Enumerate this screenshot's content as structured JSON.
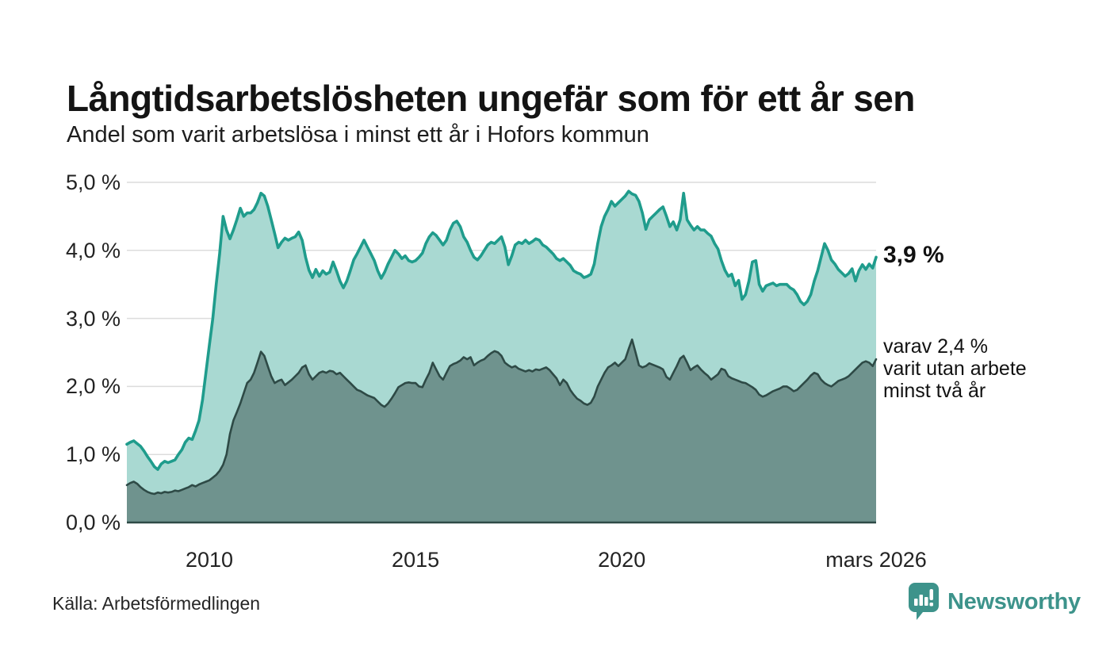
{
  "header": {
    "title": "Långtidsarbetslösheten ungefär som för ett år sen",
    "subtitle": "Andel som varit arbetslösa i minst ett år i Hofors kommun"
  },
  "annotations": {
    "latest_total": "3,9 %",
    "two_year_lines": [
      "varav 2,4 %",
      "varit utan arbete",
      "minst två år"
    ]
  },
  "footer": {
    "source": "Källa: Arbetsförmedlingen",
    "brand": "Newsworthy"
  },
  "colors": {
    "line_total": "#1f9c8c",
    "fill_total": "#a9d9d2",
    "line_two_year": "#2e4a46",
    "fill_two_year": "#6f938e",
    "gridline": "#dcdcdc",
    "brand": "#3d938b",
    "text": "#161616"
  },
  "chart_data": {
    "type": "area",
    "title": "Långtidsarbetslösheten ungefär som för ett år sen",
    "subtitle": "Andel som varit arbetslösa i minst ett år i Hofors kommun",
    "x_unit": "month",
    "x_start": "2008-01",
    "x_end": "2026-03",
    "ylim": [
      0,
      5
    ],
    "grid": true,
    "y_ticks": [
      {
        "label": "0,0 %",
        "v": 0
      },
      {
        "label": "1,0 %",
        "v": 1
      },
      {
        "label": "2,0 %",
        "v": 2
      },
      {
        "label": "3,0 %",
        "v": 3
      },
      {
        "label": "4,0 %",
        "v": 4
      },
      {
        "label": "5,0 %",
        "v": 5
      }
    ],
    "x_ticks": [
      {
        "label": "2010",
        "t": 2010
      },
      {
        "label": "2015",
        "t": 2015
      },
      {
        "label": "2020",
        "t": 2020
      },
      {
        "label": "mars 2026",
        "t": 2026.167
      }
    ],
    "series": [
      {
        "name": "Arbetslösa minst ett år",
        "latest_label": "3,9 %",
        "values": [
          1.15,
          1.18,
          1.2,
          1.16,
          1.12,
          1.05,
          0.97,
          0.9,
          0.82,
          0.78,
          0.86,
          0.9,
          0.88,
          0.9,
          0.92,
          1.0,
          1.07,
          1.18,
          1.24,
          1.22,
          1.35,
          1.5,
          1.8,
          2.2,
          2.6,
          3.0,
          3.5,
          3.95,
          4.5,
          4.3,
          4.17,
          4.3,
          4.45,
          4.62,
          4.5,
          4.55,
          4.55,
          4.6,
          4.7,
          4.84,
          4.8,
          4.65,
          4.45,
          4.25,
          4.04,
          4.12,
          4.18,
          4.15,
          4.18,
          4.2,
          4.27,
          4.15,
          3.9,
          3.71,
          3.6,
          3.72,
          3.62,
          3.7,
          3.65,
          3.68,
          3.83,
          3.7,
          3.55,
          3.45,
          3.55,
          3.7,
          3.86,
          3.95,
          4.05,
          4.15,
          4.05,
          3.95,
          3.85,
          3.7,
          3.59,
          3.68,
          3.8,
          3.9,
          4.0,
          3.95,
          3.88,
          3.92,
          3.85,
          3.83,
          3.85,
          3.9,
          3.96,
          4.1,
          4.2,
          4.26,
          4.22,
          4.15,
          4.08,
          4.15,
          4.3,
          4.4,
          4.43,
          4.35,
          4.2,
          4.12,
          4.0,
          3.9,
          3.86,
          3.92,
          4.0,
          4.08,
          4.12,
          4.1,
          4.15,
          4.2,
          4.05,
          3.79,
          3.92,
          4.08,
          4.12,
          4.1,
          4.15,
          4.1,
          4.13,
          4.17,
          4.15,
          4.08,
          4.05,
          4.0,
          3.95,
          3.88,
          3.85,
          3.88,
          3.83,
          3.78,
          3.7,
          3.67,
          3.65,
          3.6,
          3.62,
          3.65,
          3.8,
          4.1,
          4.35,
          4.5,
          4.6,
          4.72,
          4.65,
          4.7,
          4.75,
          4.8,
          4.87,
          4.83,
          4.81,
          4.72,
          4.55,
          4.31,
          4.45,
          4.5,
          4.55,
          4.6,
          4.64,
          4.5,
          4.35,
          4.42,
          4.3,
          4.45,
          4.84,
          4.45,
          4.37,
          4.3,
          4.35,
          4.3,
          4.3,
          4.25,
          4.21,
          4.1,
          4.02,
          3.85,
          3.71,
          3.62,
          3.65,
          3.48,
          3.56,
          3.28,
          3.35,
          3.55,
          3.83,
          3.85,
          3.5,
          3.4,
          3.48,
          3.5,
          3.52,
          3.48,
          3.5,
          3.5,
          3.5,
          3.45,
          3.42,
          3.35,
          3.25,
          3.2,
          3.25,
          3.35,
          3.55,
          3.7,
          3.9,
          4.1,
          4.0,
          3.86,
          3.8,
          3.72,
          3.67,
          3.62,
          3.66,
          3.73,
          3.55,
          3.7,
          3.79,
          3.72,
          3.8,
          3.74,
          3.9
        ]
      },
      {
        "name": "Arbetslösa minst två år",
        "latest_label": "2,4 %",
        "values": [
          0.55,
          0.58,
          0.6,
          0.57,
          0.52,
          0.48,
          0.45,
          0.43,
          0.42,
          0.44,
          0.43,
          0.45,
          0.44,
          0.45,
          0.47,
          0.46,
          0.48,
          0.5,
          0.52,
          0.55,
          0.53,
          0.56,
          0.58,
          0.6,
          0.62,
          0.66,
          0.7,
          0.76,
          0.85,
          1.0,
          1.3,
          1.5,
          1.62,
          1.75,
          1.9,
          2.05,
          2.1,
          2.2,
          2.35,
          2.51,
          2.45,
          2.3,
          2.15,
          2.05,
          2.08,
          2.1,
          2.02,
          2.06,
          2.1,
          2.15,
          2.2,
          2.28,
          2.31,
          2.18,
          2.1,
          2.15,
          2.2,
          2.22,
          2.2,
          2.23,
          2.22,
          2.18,
          2.2,
          2.15,
          2.1,
          2.05,
          2.0,
          1.95,
          1.93,
          1.9,
          1.87,
          1.85,
          1.83,
          1.78,
          1.73,
          1.7,
          1.75,
          1.82,
          1.9,
          1.99,
          2.02,
          2.05,
          2.06,
          2.05,
          2.05,
          2.0,
          1.99,
          2.1,
          2.2,
          2.35,
          2.25,
          2.15,
          2.1,
          2.2,
          2.3,
          2.33,
          2.35,
          2.38,
          2.43,
          2.4,
          2.43,
          2.31,
          2.35,
          2.38,
          2.4,
          2.45,
          2.49,
          2.52,
          2.5,
          2.45,
          2.35,
          2.31,
          2.28,
          2.3,
          2.26,
          2.24,
          2.22,
          2.24,
          2.22,
          2.25,
          2.24,
          2.26,
          2.28,
          2.24,
          2.18,
          2.12,
          2.02,
          2.1,
          2.05,
          1.95,
          1.88,
          1.82,
          1.79,
          1.75,
          1.73,
          1.76,
          1.85,
          2.0,
          2.1,
          2.2,
          2.28,
          2.31,
          2.35,
          2.3,
          2.35,
          2.4,
          2.55,
          2.69,
          2.5,
          2.31,
          2.28,
          2.3,
          2.34,
          2.32,
          2.3,
          2.28,
          2.25,
          2.14,
          2.1,
          2.2,
          2.3,
          2.41,
          2.45,
          2.35,
          2.24,
          2.28,
          2.31,
          2.25,
          2.2,
          2.16,
          2.1,
          2.14,
          2.18,
          2.26,
          2.24,
          2.15,
          2.12,
          2.1,
          2.08,
          2.06,
          2.05,
          2.02,
          1.99,
          1.95,
          1.88,
          1.85,
          1.87,
          1.9,
          1.93,
          1.95,
          1.97,
          2.0,
          2.0,
          1.97,
          1.93,
          1.95,
          2.0,
          2.05,
          2.1,
          2.16,
          2.2,
          2.18,
          2.1,
          2.05,
          2.02,
          2.0,
          2.04,
          2.08,
          2.1,
          2.12,
          2.15,
          2.2,
          2.25,
          2.3,
          2.35,
          2.37,
          2.35,
          2.3,
          2.4
        ]
      }
    ]
  }
}
